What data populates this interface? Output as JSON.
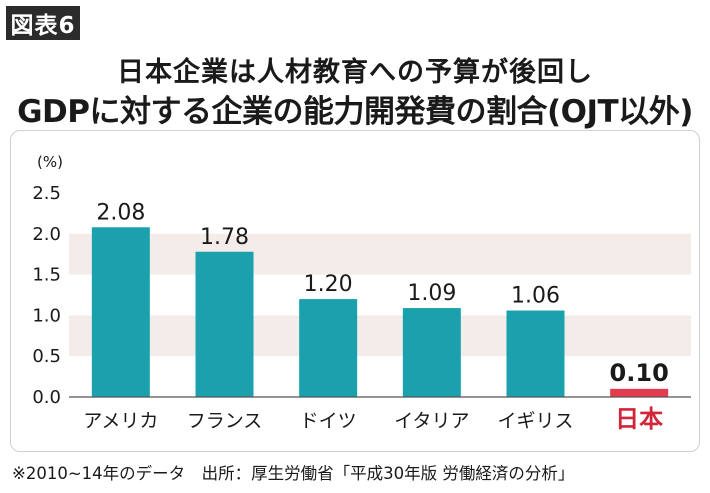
{
  "figure_label": "図表6",
  "subtitle": "日本企業は人材教育への予算が後回し",
  "title": "GDPに対する企業の能力開発費の割合(OJT以外)",
  "footnote": "※2010~14年のデータ　出所：厚生労働省「平成30年版 労働経済の分析」",
  "colors": {
    "bar": "#1ba1ad",
    "highlight_bar": "#e43b4e",
    "band": "#f3ece8",
    "highlight_label": "#d3253a"
  },
  "chart_data": {
    "type": "bar",
    "unit_label": "(%)",
    "categories": [
      "アメリカ",
      "フランス",
      "ドイツ",
      "イタリア",
      "イギリス",
      "日本"
    ],
    "values": [
      2.08,
      1.78,
      1.2,
      1.09,
      1.06,
      0.1
    ],
    "value_labels": [
      "2.08",
      "1.78",
      "1.20",
      "1.09",
      "1.06",
      "0.10"
    ],
    "highlight_index": 5,
    "ylim": [
      0,
      2.5
    ],
    "yticks": [
      0,
      0.5,
      1.0,
      1.5,
      2.0,
      2.5
    ],
    "ytick_labels": [
      "0.0",
      "0.5",
      "1.0",
      "1.5",
      "2.0",
      "2.5"
    ],
    "grid_bands": true
  }
}
